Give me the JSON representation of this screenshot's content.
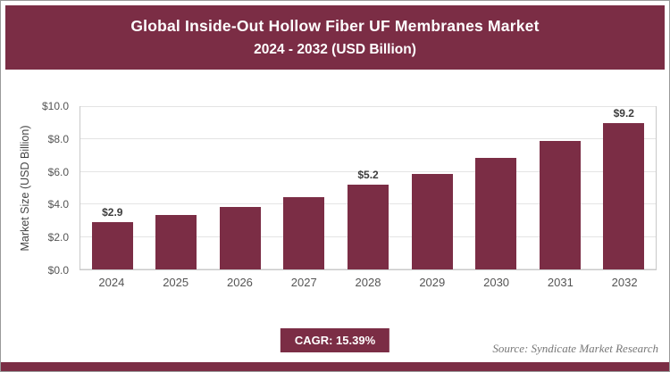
{
  "header": {
    "title_line1": "Global Inside-Out Hollow Fiber UF Membranes Market",
    "title_line2": "2024 - 2032 (USD Billion)"
  },
  "chart_data": {
    "type": "bar",
    "title": "Global Inside-Out Hollow Fiber UF Membranes Market 2024 - 2032 (USD Billion)",
    "categories": [
      "2024",
      "2025",
      "2026",
      "2027",
      "2028",
      "2029",
      "2030",
      "2031",
      "2032"
    ],
    "values": [
      2.9,
      3.35,
      3.85,
      4.45,
      5.2,
      5.9,
      6.85,
      7.9,
      9.2
    ],
    "bar_labels": [
      "$2.9",
      "",
      "",
      "",
      "$5.2",
      "",
      "",
      "",
      "$9.2"
    ],
    "xlabel": "",
    "ylabel": "Market Size (USD Billion)",
    "ylim": [
      0,
      10
    ],
    "yticks": [
      0,
      2,
      4,
      6,
      8,
      10
    ],
    "ytick_labels": [
      "$0.0",
      "$2.0",
      "$4.0",
      "$6.0",
      "$8.0",
      "$10.0"
    ],
    "grid": true,
    "legend": false,
    "bar_color": "#7B2D45"
  },
  "footer": {
    "cagr_label": "CAGR: 15.39%",
    "source": "Source: Syndicate Market Research"
  },
  "colors": {
    "accent": "#7B2D45"
  }
}
